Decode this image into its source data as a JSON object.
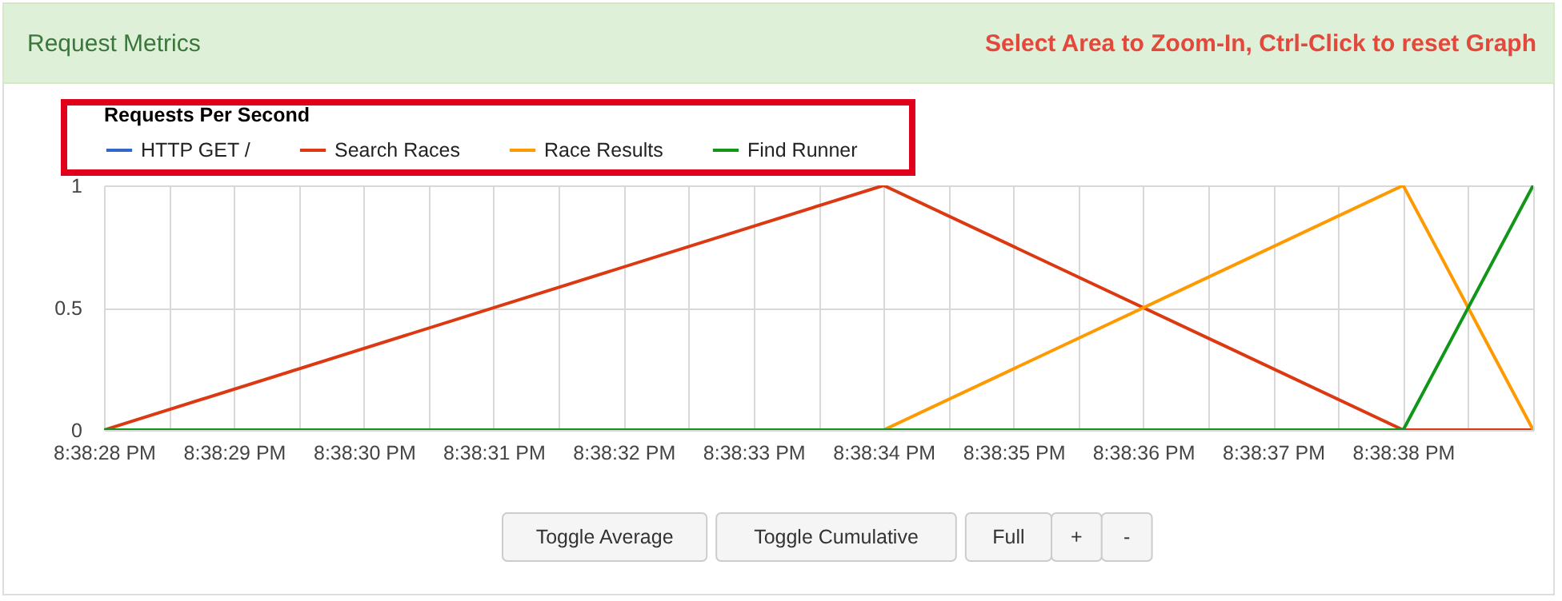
{
  "chart_data": {
    "type": "line",
    "title": "Request Metrics",
    "legend_title": "Requests Per Second",
    "annotations": [
      "Select Area to Zoom-In, Ctrl-Click to reset Graph",
      "Toggle Average",
      "Toggle Cumulative",
      "Full",
      "+",
      "-"
    ],
    "x": [
      20.641111,
      20.642778,
      20.643889,
      20.644167
    ],
    "series": [
      {
        "name": "HTTP GET /",
        "color": "#3366cc",
        "values": [
          null,
          null,
          null,
          null
        ]
      },
      {
        "name": "Search Races",
        "color": "#dc3912",
        "values": [
          0,
          1,
          0,
          0
        ]
      },
      {
        "name": "Race Results",
        "color": "#ff9900",
        "values": [
          0,
          0,
          1,
          0
        ]
      },
      {
        "name": "Find Runner",
        "color": "#109618",
        "values": [
          0,
          0,
          0,
          1
        ]
      }
    ],
    "xlim": [
      20.641111,
      20.644167
    ],
    "xticks": [
      {
        "value": 20.641111,
        "label": "8:38:28 PM"
      },
      {
        "value": 20.64125,
        "label": null
      },
      {
        "value": 20.641389,
        "label": "8:38:29 PM"
      },
      {
        "value": 20.641528,
        "label": null
      },
      {
        "value": 20.641667,
        "label": "8:38:30 PM"
      },
      {
        "value": 20.641806,
        "label": null
      },
      {
        "value": 20.641944,
        "label": "8:38:31 PM"
      },
      {
        "value": 20.642083,
        "label": null
      },
      {
        "value": 20.642222,
        "label": "8:38:32 PM"
      },
      {
        "value": 20.642361,
        "label": null
      },
      {
        "value": 20.6425,
        "label": "8:38:33 PM"
      },
      {
        "value": 20.642639,
        "label": null
      },
      {
        "value": 20.642778,
        "label": "8:38:34 PM"
      },
      {
        "value": 20.642917,
        "label": null
      },
      {
        "value": 20.643056,
        "label": "8:38:35 PM"
      },
      {
        "value": 20.643194,
        "label": null
      },
      {
        "value": 20.643333,
        "label": "8:38:36 PM"
      },
      {
        "value": 20.643472,
        "label": null
      },
      {
        "value": 20.643611,
        "label": "8:38:37 PM"
      },
      {
        "value": 20.64375,
        "label": null
      },
      {
        "value": 20.643889,
        "label": "8:38:38 PM"
      },
      {
        "value": 20.644028,
        "label": null
      },
      {
        "value": 20.644167,
        "label": null
      }
    ],
    "ylim": [
      0,
      1
    ],
    "yticks": [
      0,
      0.5,
      1
    ],
    "grid": true,
    "legend": "top left"
  }
}
